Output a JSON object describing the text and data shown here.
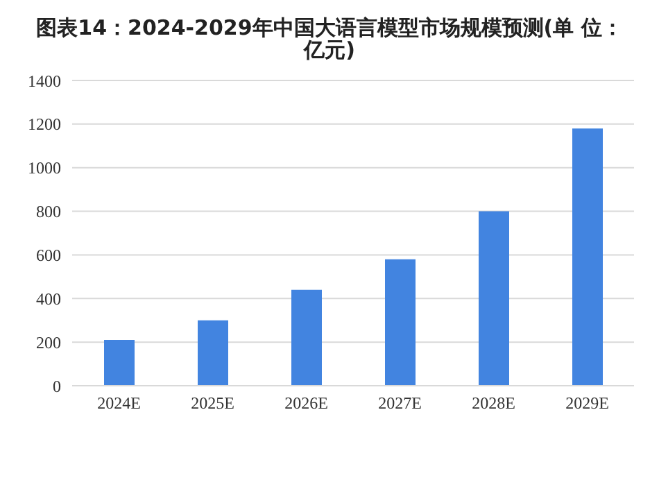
{
  "chart_data": {
    "type": "bar",
    "title": "图表14：2024-2029年中国大语言模型市场规模预测(单 位：亿元)",
    "categories": [
      "2024E",
      "2025E",
      "2026E",
      "2027E",
      "2028E",
      "2029E"
    ],
    "values": [
      210,
      300,
      440,
      580,
      800,
      1180
    ],
    "color": "#4284e0",
    "ylim": [
      0,
      1400
    ],
    "yticks": [
      0,
      200,
      400,
      600,
      800,
      1000,
      1200,
      1400
    ],
    "grid": "y"
  }
}
